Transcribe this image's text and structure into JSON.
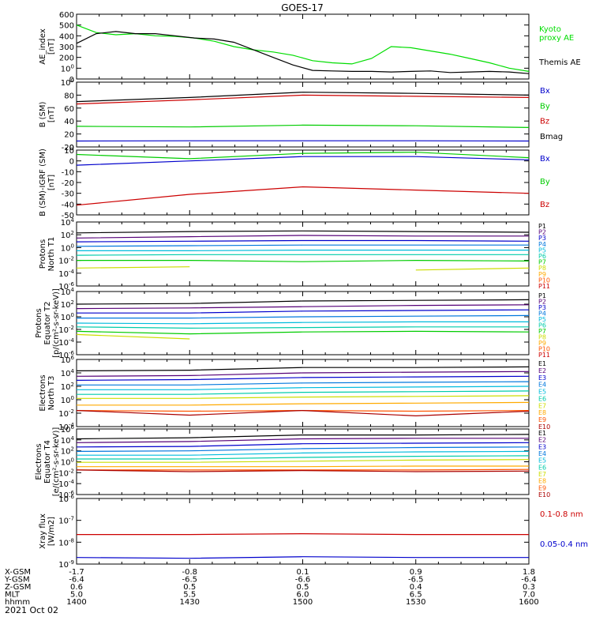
{
  "title": "GOES-17",
  "footer": {
    "rows": [
      {
        "label": "X-GSM",
        "values": [
          "-1.7",
          "-0.8",
          "0.1",
          "0.9",
          "1.8"
        ]
      },
      {
        "label": "Y-GSM",
        "values": [
          "-6.4",
          "-6.5",
          "-6.6",
          "-6.5",
          "-6.4"
        ]
      },
      {
        "label": "Z-GSM",
        "values": [
          "0.6",
          "0.5",
          "0.5",
          "0.4",
          "0.3"
        ]
      },
      {
        "label": "MLT",
        "values": [
          "5.0",
          "5.5",
          "6.0",
          "6.5",
          "7.0"
        ]
      },
      {
        "label": "hhmm",
        "values": [
          "1400",
          "1430",
          "1500",
          "1530",
          "1600"
        ]
      }
    ],
    "date": "2021 Oct 02"
  },
  "chart_data": [
    {
      "type": "line",
      "id": "ae",
      "ylabel": [
        "AE_index",
        "[nT]"
      ],
      "ylim": [
        0,
        600
      ],
      "scale": "linear",
      "yticks": [
        "0",
        "100",
        "200",
        "300",
        "400",
        "500",
        "600"
      ],
      "x": [
        "1400",
        "1410",
        "1415",
        "1420",
        "1425",
        "1430",
        "1435",
        "1440",
        "1445",
        "1450",
        "1455",
        "1500",
        "1505",
        "1510",
        "1515",
        "1520",
        "1525",
        "1530",
        "1535",
        "1540",
        "1545",
        "1550",
        "1555",
        "1600"
      ],
      "series": [
        {
          "name": "Kyoto proxy AE",
          "color": "#00dd00",
          "legend_lines": [
            "Kyoto",
            "proxy AE"
          ],
          "values": [
            500,
            430,
            410,
            420,
            400,
            395,
            380,
            350,
            300,
            270,
            250,
            220,
            170,
            150,
            140,
            190,
            300,
            290,
            260,
            230,
            190,
            150,
            100,
            70
          ]
        },
        {
          "name": "Themis AE",
          "color": "#000000",
          "legend_lines": [
            "Themis AE"
          ],
          "values": [
            330,
            420,
            440,
            420,
            420,
            400,
            380,
            370,
            340,
            270,
            200,
            130,
            80,
            75,
            70,
            70,
            65,
            70,
            75,
            60,
            65,
            70,
            65,
            50
          ]
        }
      ]
    },
    {
      "type": "line",
      "id": "bsm",
      "ylabel": [
        "B (SM)",
        "[nT]"
      ],
      "ylim": [
        -10,
        100
      ],
      "scale": "linear",
      "yticks": [
        "0",
        "20",
        "40",
        "60",
        "80",
        "100"
      ],
      "extra_tick": "-20",
      "x": [
        "1400",
        "1430",
        "1500",
        "1530",
        "1600"
      ],
      "series": [
        {
          "name": "Bx",
          "color": "#0000cc",
          "values": [
            0,
            0.5,
            0.5,
            0.5,
            0
          ]
        },
        {
          "name": "By",
          "color": "#00cc00",
          "values": [
            25,
            24,
            27,
            26,
            23
          ]
        },
        {
          "name": "Bz",
          "color": "#cc0000",
          "values": [
            63,
            70,
            78,
            76,
            74
          ]
        },
        {
          "name": "Bmag",
          "color": "#000000",
          "values": [
            67,
            74,
            83,
            81,
            78
          ]
        }
      ]
    },
    {
      "type": "line",
      "id": "bigrf",
      "ylabel": [
        "B (SM)-IGRF (SM)",
        "[nT]"
      ],
      "ylim": [
        -50,
        10
      ],
      "scale": "linear",
      "yticks": [
        "-50",
        "-40",
        "-30",
        "-20",
        "-10",
        "0",
        "10"
      ],
      "x": [
        "1400",
        "1430",
        "1500",
        "1530",
        "1600"
      ],
      "series": [
        {
          "name": "Bx",
          "color": "#0000cc",
          "values": [
            -4,
            0,
            4,
            4,
            1
          ]
        },
        {
          "name": "By",
          "color": "#00cc00",
          "values": [
            6,
            2,
            7,
            8,
            3
          ]
        },
        {
          "name": "Bz",
          "color": "#cc0000",
          "values": [
            -41,
            -31,
            -24,
            -27,
            -30
          ]
        }
      ]
    },
    {
      "type": "line",
      "id": "pn",
      "ylabel": [
        "Protons",
        "North T1"
      ],
      "ylim": [
        -6,
        4
      ],
      "scale": "log",
      "yticks": [
        "10-6",
        "10-4",
        "10-2",
        "100",
        "102",
        "104"
      ],
      "channels": [
        {
          "name": "P1",
          "color": "#000000",
          "log_values": [
            2.3,
            2.5,
            2.6,
            2.5,
            2.4
          ]
        },
        {
          "name": "P2",
          "color": "#550077",
          "log_values": [
            1.5,
            1.7,
            1.9,
            1.8,
            1.8
          ]
        },
        {
          "name": "P3",
          "color": "#0000cc",
          "log_values": [
            0.9,
            1.0,
            1.1,
            1.1,
            1.0
          ]
        },
        {
          "name": "P4",
          "color": "#0077dd",
          "log_values": [
            0.2,
            0.3,
            0.4,
            0.4,
            0.4
          ]
        },
        {
          "name": "P5",
          "color": "#00bbdd",
          "log_values": [
            -0.5,
            -0.5,
            -0.4,
            -0.4,
            -0.4
          ]
        },
        {
          "name": "P6",
          "color": "#00ccaa",
          "log_values": [
            -1.2,
            -1.1,
            -1.1,
            -1.1,
            -1.1
          ]
        },
        {
          "name": "P7",
          "color": "#00cc00",
          "log_values": [
            -2.0,
            -2.0,
            -2.2,
            -2.0,
            -2.1
          ]
        },
        {
          "name": "P8",
          "color": "#ccdd00",
          "log_values": [
            -3.2,
            -3.0,
            null,
            -3.5,
            -3.2
          ]
        },
        {
          "name": "P9",
          "color": "#ffaa00",
          "log_values": [
            null,
            null,
            null,
            -3.9,
            null
          ]
        },
        {
          "name": "P10",
          "color": "#ff5500",
          "log_values": [
            null,
            null,
            null,
            null,
            null
          ]
        },
        {
          "name": "P11",
          "color": "#cc0000",
          "log_values": [
            null,
            null,
            null,
            null,
            null
          ]
        }
      ]
    },
    {
      "type": "line",
      "id": "pe",
      "ylabel": [
        "Protons",
        "Equator T2",
        "[p/(cm²-s-sr-keV)]"
      ],
      "ylim": [
        -6,
        4
      ],
      "scale": "log",
      "yticks": [
        "10-6",
        "10-4",
        "10-2",
        "100",
        "102",
        "104"
      ],
      "channels": [
        {
          "name": "P1",
          "color": "#000000",
          "log_values": [
            2.0,
            2.1,
            2.5,
            2.6,
            2.7
          ]
        },
        {
          "name": "P2",
          "color": "#550077",
          "log_values": [
            1.3,
            1.4,
            1.6,
            1.8,
            1.9
          ]
        },
        {
          "name": "P3",
          "color": "#0000cc",
          "log_values": [
            0.6,
            0.6,
            0.9,
            1.0,
            1.1
          ]
        },
        {
          "name": "P4",
          "color": "#0077dd",
          "log_values": [
            -0.2,
            -0.2,
            0.0,
            0.1,
            0.2
          ]
        },
        {
          "name": "P5",
          "color": "#00bbdd",
          "log_values": [
            -1.0,
            -1.1,
            -0.9,
            -0.8,
            -0.8
          ]
        },
        {
          "name": "P6",
          "color": "#00ccaa",
          "log_values": [
            -1.6,
            -1.8,
            -1.7,
            -1.6,
            -1.6
          ]
        },
        {
          "name": "P7",
          "color": "#00cc00",
          "log_values": [
            -2.3,
            -2.7,
            -2.4,
            -2.3,
            -2.4
          ]
        },
        {
          "name": "P8",
          "color": "#ccdd00",
          "log_values": [
            -2.8,
            -3.5,
            null,
            null,
            null
          ]
        },
        {
          "name": "P9",
          "color": "#ffaa00",
          "log_values": [
            null,
            null,
            null,
            null,
            null
          ]
        },
        {
          "name": "P10",
          "color": "#ff5500",
          "log_values": [
            null,
            null,
            null,
            null,
            null
          ]
        },
        {
          "name": "P11",
          "color": "#cc0000",
          "log_values": [
            null,
            null,
            null,
            null,
            null
          ]
        }
      ]
    },
    {
      "type": "line",
      "id": "en",
      "ylabel": [
        "Electrons",
        "North T3"
      ],
      "ylim": [
        -4,
        6
      ],
      "scale": "log",
      "yticks": [
        "10-4",
        "10-2",
        "100",
        "102",
        "104",
        "106"
      ],
      "channels": [
        {
          "name": "E1",
          "color": "#000000",
          "log_values": [
            4.3,
            4.4,
            4.8,
            4.8,
            4.9
          ]
        },
        {
          "name": "E2",
          "color": "#550077",
          "log_values": [
            3.5,
            3.6,
            4.0,
            4.1,
            4.2
          ]
        },
        {
          "name": "E3",
          "color": "#0000cc",
          "log_values": [
            2.9,
            3.0,
            3.3,
            3.4,
            3.5
          ]
        },
        {
          "name": "E4",
          "color": "#0077dd",
          "log_values": [
            2.2,
            2.2,
            2.5,
            2.6,
            2.7
          ]
        },
        {
          "name": "E5",
          "color": "#00bbdd",
          "log_values": [
            1.5,
            1.5,
            1.8,
            1.9,
            2.0
          ]
        },
        {
          "name": "E6",
          "color": "#00ccaa",
          "log_values": [
            0.8,
            0.8,
            1.1,
            1.2,
            1.3
          ]
        },
        {
          "name": "E7",
          "color": "#ccdd00",
          "log_values": [
            0.2,
            0.2,
            0.4,
            0.5,
            0.6
          ]
        },
        {
          "name": "E8",
          "color": "#ffaa00",
          "log_values": [
            -0.8,
            -0.8,
            -0.6,
            -0.5,
            -0.4
          ]
        },
        {
          "name": "E9",
          "color": "#ff5500",
          "log_values": [
            -1.6,
            -1.7,
            -1.6,
            -1.7,
            -1.6
          ]
        },
        {
          "name": "E10",
          "color": "#aa0000",
          "log_values": [
            -1.6,
            -2.3,
            -1.6,
            -2.4,
            -1.7
          ]
        }
      ]
    },
    {
      "type": "line",
      "id": "ee",
      "ylabel": [
        "Electrons",
        "Equator T4",
        "[e/(cm²-s-sr-keV)]"
      ],
      "ylim": [
        -6,
        6
      ],
      "scale": "log",
      "yticks": [
        "10-6",
        "10-4",
        "10-2",
        "100",
        "102",
        "104",
        "106"
      ],
      "channels": [
        {
          "name": "E1",
          "color": "#000000",
          "log_values": [
            4.2,
            4.4,
            4.9,
            4.9,
            5.0
          ]
        },
        {
          "name": "E2",
          "color": "#550077",
          "log_values": [
            3.5,
            3.7,
            4.2,
            4.3,
            4.3
          ]
        },
        {
          "name": "E3",
          "color": "#0000cc",
          "log_values": [
            2.7,
            2.8,
            3.3,
            3.4,
            3.5
          ]
        },
        {
          "name": "E4",
          "color": "#0077dd",
          "log_values": [
            1.9,
            2.0,
            2.4,
            2.6,
            2.7
          ]
        },
        {
          "name": "E5",
          "color": "#00bbdd",
          "log_values": [
            1.2,
            1.2,
            1.6,
            1.8,
            1.9
          ]
        },
        {
          "name": "E6",
          "color": "#00ccaa",
          "log_values": [
            0.5,
            0.5,
            0.8,
            1.0,
            1.1
          ]
        },
        {
          "name": "E7",
          "color": "#ccdd00",
          "log_values": [
            -0.1,
            -0.1,
            0.1,
            0.3,
            0.4
          ]
        },
        {
          "name": "E8",
          "color": "#ffaa00",
          "log_values": [
            -0.9,
            -0.9,
            -0.9,
            -0.8,
            -0.8
          ]
        },
        {
          "name": "E9",
          "color": "#ff5500",
          "log_values": [
            -1.5,
            -1.5,
            -1.5,
            -1.5,
            -1.4
          ]
        },
        {
          "name": "E10",
          "color": "#aa0000",
          "log_values": [
            -1.5,
            -1.8,
            -1.6,
            -1.8,
            -1.7
          ]
        }
      ]
    },
    {
      "type": "line",
      "id": "xray",
      "ylabel": [
        "Xray flux",
        "[W/m2]"
      ],
      "ylim": [
        -9,
        -5
      ],
      "scale": "log",
      "yticks": [
        "10-9",
        "10-8",
        "10-7",
        "10-6"
      ],
      "x": [
        "1400",
        "1430",
        "1500",
        "1530",
        "1600"
      ],
      "series": [
        {
          "name": "0.1-0.8 nm",
          "color": "#cc0000",
          "log_values": [
            -7.2,
            -7.2,
            -7.15,
            -7.2,
            -7.2
          ]
        },
        {
          "name": "0.05-0.4 nm",
          "color": "#0000cc",
          "log_values": [
            -8.6,
            -8.65,
            -8.55,
            -8.6,
            -8.6
          ]
        }
      ]
    }
  ]
}
